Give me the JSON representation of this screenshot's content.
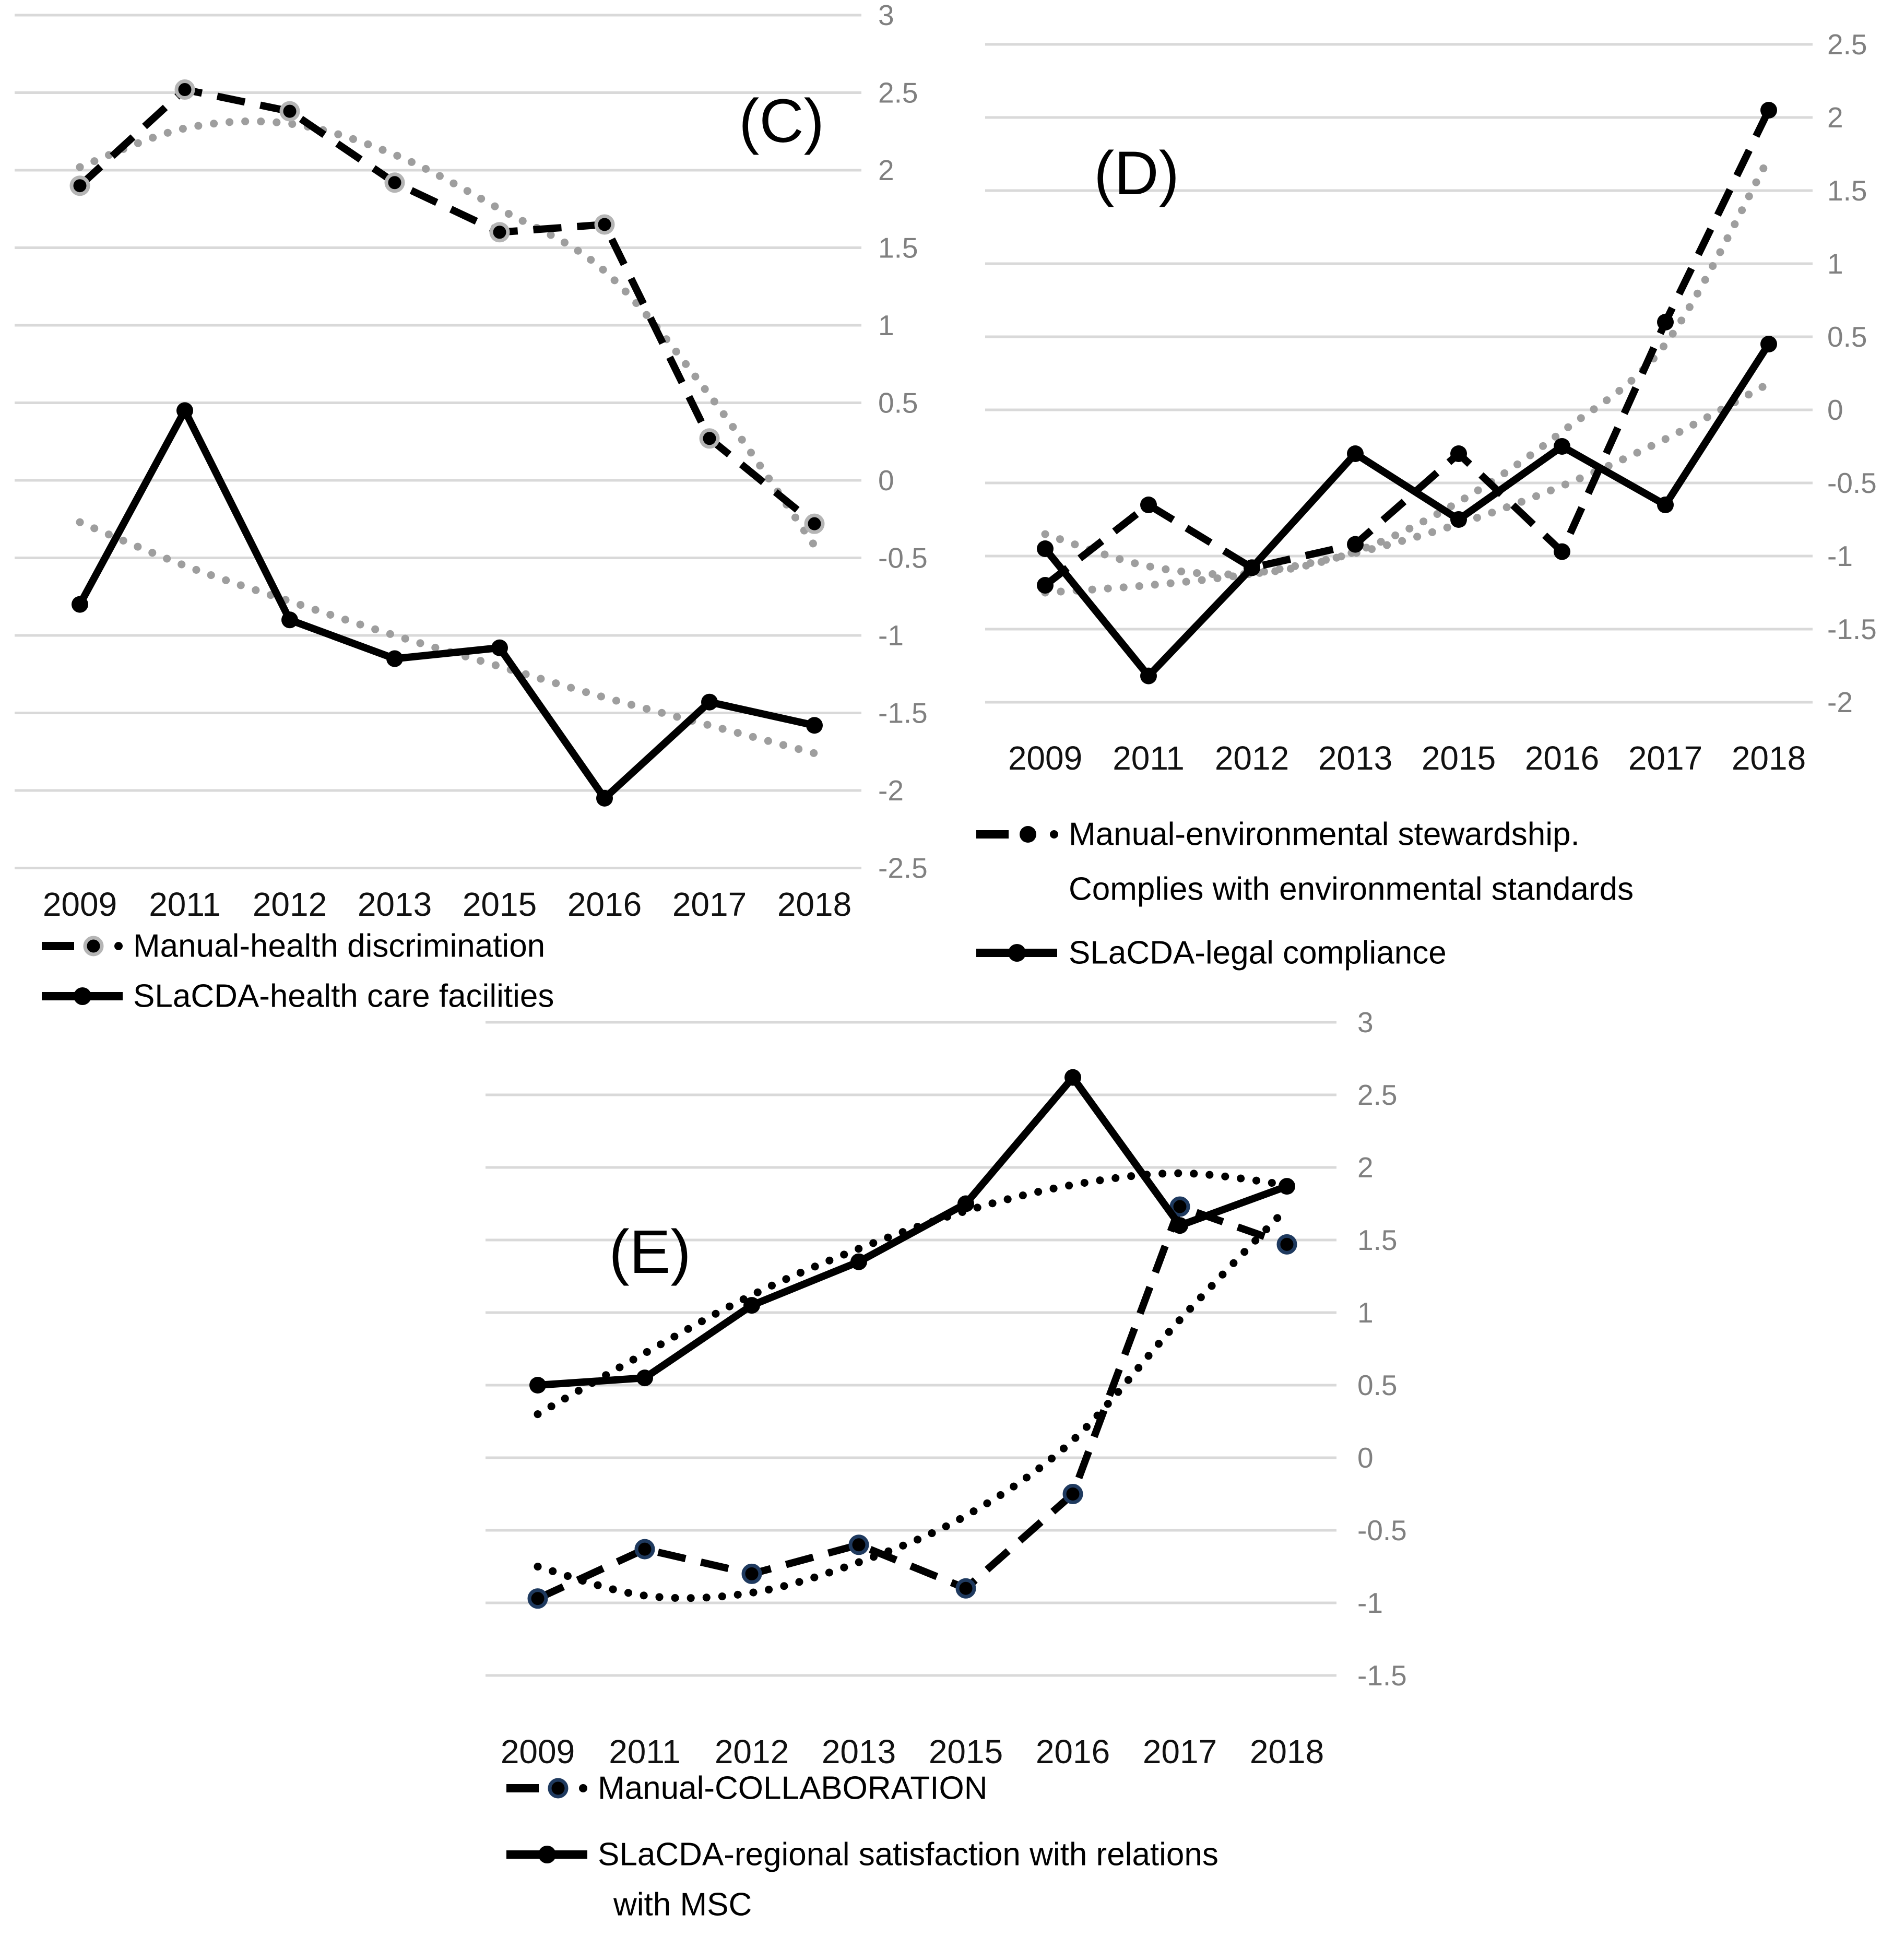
{
  "page": {
    "background": "#ffffff",
    "description": "Three standardized-score line chart panels comparing Manual vs SLaCDA indicator time series with polynomial trendlines"
  },
  "chart_data": [
    {
      "id": "C",
      "type": "line",
      "panel_label": "(C)",
      "categories": [
        "2009",
        "2011",
        "2012",
        "2013",
        "2015",
        "2016",
        "2017",
        "2018"
      ],
      "y_ticks": [
        3,
        2.5,
        2,
        1.5,
        1,
        0.5,
        0,
        -0.5,
        -1,
        -1.5,
        -2,
        -2.5
      ],
      "ylim": [
        -2.5,
        3
      ],
      "xlabel": "",
      "ylabel": "",
      "grid": true,
      "y_axis_side": "right",
      "legend_position": "bottom-left",
      "series": [
        {
          "name": "Manual-health discrimination",
          "line": "dashed",
          "color": "#000000",
          "marker_ring": "#b5b5b5",
          "values": [
            1.9,
            2.52,
            2.38,
            1.92,
            1.6,
            1.65,
            0.27,
            -0.28
          ]
        },
        {
          "name": "SLaCDA-health care facilities",
          "line": "solid",
          "color": "#000000",
          "values": [
            -0.8,
            0.45,
            -0.9,
            -1.15,
            -1.08,
            -2.05,
            -1.43,
            -1.58
          ]
        }
      ],
      "trendlines": [
        {
          "for": "Manual-health discrimination",
          "style": "dotted",
          "color": "#9e9e9e",
          "values": [
            2.02,
            2.27,
            2.3,
            2.1,
            1.75,
            1.35,
            0.55,
            -0.42
          ]
        },
        {
          "for": "SLaCDA-health care facilities",
          "style": "dotted",
          "color": "#9e9e9e",
          "values": [
            -0.27,
            -0.55,
            -0.78,
            -1.0,
            -1.2,
            -1.4,
            -1.58,
            -1.76
          ]
        }
      ],
      "legend": [
        {
          "marker": "dash-dot",
          "ring": "#b5b5b5",
          "lines": [
            "Manual-health discrimination"
          ]
        },
        {
          "marker": "solid-dot",
          "lines": [
            "SLaCDA-health care facilities"
          ]
        }
      ]
    },
    {
      "id": "D",
      "type": "line",
      "panel_label": "(D)",
      "categories": [
        "2009",
        "2011",
        "2012",
        "2013",
        "2015",
        "2016",
        "2017",
        "2018"
      ],
      "y_ticks": [
        2.5,
        2,
        1.5,
        1,
        0.5,
        0,
        -0.5,
        -1,
        -1.5,
        -2
      ],
      "ylim": [
        -2,
        2.5
      ],
      "xlabel": "",
      "ylabel": "",
      "grid": true,
      "y_axis_side": "right",
      "legend_position": "bottom-left",
      "series": [
        {
          "name": "Manual-environmental stewardship. Complies with environmental standards",
          "line": "dashed",
          "color": "#000000",
          "values": [
            -1.2,
            -0.65,
            -1.08,
            -0.92,
            -0.3,
            -0.97,
            0.6,
            2.05
          ]
        },
        {
          "name": "SLaCDA-legal compliance",
          "line": "solid",
          "color": "#000000",
          "values": [
            -0.95,
            -1.82,
            -1.08,
            -0.3,
            -0.75,
            -0.25,
            -0.65,
            0.45
          ]
        }
      ],
      "trendlines": [
        {
          "for": "Manual-environmental stewardship. Complies with environmental standards",
          "style": "dotted",
          "color": "#9e9e9e",
          "values": [
            -0.85,
            -1.07,
            -1.12,
            -0.97,
            -0.63,
            -0.15,
            0.45,
            1.72
          ]
        },
        {
          "for": "SLaCDA-legal compliance",
          "style": "dotted",
          "color": "#9e9e9e",
          "values": [
            -1.25,
            -1.2,
            -1.12,
            -0.98,
            -0.78,
            -0.52,
            -0.2,
            0.18
          ]
        }
      ],
      "legend": [
        {
          "marker": "dash-dot",
          "lines": [
            "Manual-environmental stewardship.",
            "Complies with environmental standards"
          ]
        },
        {
          "marker": "solid-dot",
          "lines": [
            "SLaCDA-legal compliance"
          ]
        }
      ]
    },
    {
      "id": "E",
      "type": "line",
      "panel_label": "(E)",
      "categories": [
        "2009",
        "2011",
        "2012",
        "2013",
        "2015",
        "2016",
        "2017",
        "2018"
      ],
      "y_ticks": [
        3,
        2.5,
        2,
        1.5,
        1,
        0.5,
        0,
        -0.5,
        -1,
        -1.5
      ],
      "ylim": [
        -1.5,
        3
      ],
      "xlabel": "",
      "ylabel": "",
      "grid": true,
      "y_axis_side": "right",
      "legend_position": "bottom-left",
      "series": [
        {
          "name": "Manual-COLLABORATION",
          "line": "dashed",
          "color": "#000000",
          "marker_ring": "#1f3a5f",
          "values": [
            -0.97,
            -0.63,
            -0.8,
            -0.6,
            -0.9,
            -0.25,
            1.73,
            1.47
          ]
        },
        {
          "name": "SLaCDA-regional satisfaction with relations with MSC",
          "line": "solid",
          "color": "#000000",
          "values": [
            0.5,
            0.55,
            1.05,
            1.35,
            1.75,
            2.62,
            1.6,
            1.87
          ]
        }
      ],
      "trendlines": [
        {
          "for": "Manual-COLLABORATION",
          "style": "dotted",
          "color": "#000000",
          "values": [
            -0.75,
            -0.95,
            -0.93,
            -0.72,
            -0.4,
            0.12,
            0.95,
            1.72
          ]
        },
        {
          "for": "SLaCDA-regional satisfaction with relations with MSC",
          "style": "dotted",
          "color": "#000000",
          "values": [
            0.3,
            0.72,
            1.12,
            1.44,
            1.7,
            1.88,
            1.96,
            1.88
          ]
        }
      ],
      "legend": [
        {
          "marker": "dash-dot",
          "ring": "#1f3a5f",
          "lines": [
            "Manual-COLLABORATION"
          ]
        },
        {
          "marker": "solid-dot",
          "lines": [
            "SLaCDA-regional satisfaction with relations",
            "with MSC"
          ]
        }
      ]
    }
  ]
}
